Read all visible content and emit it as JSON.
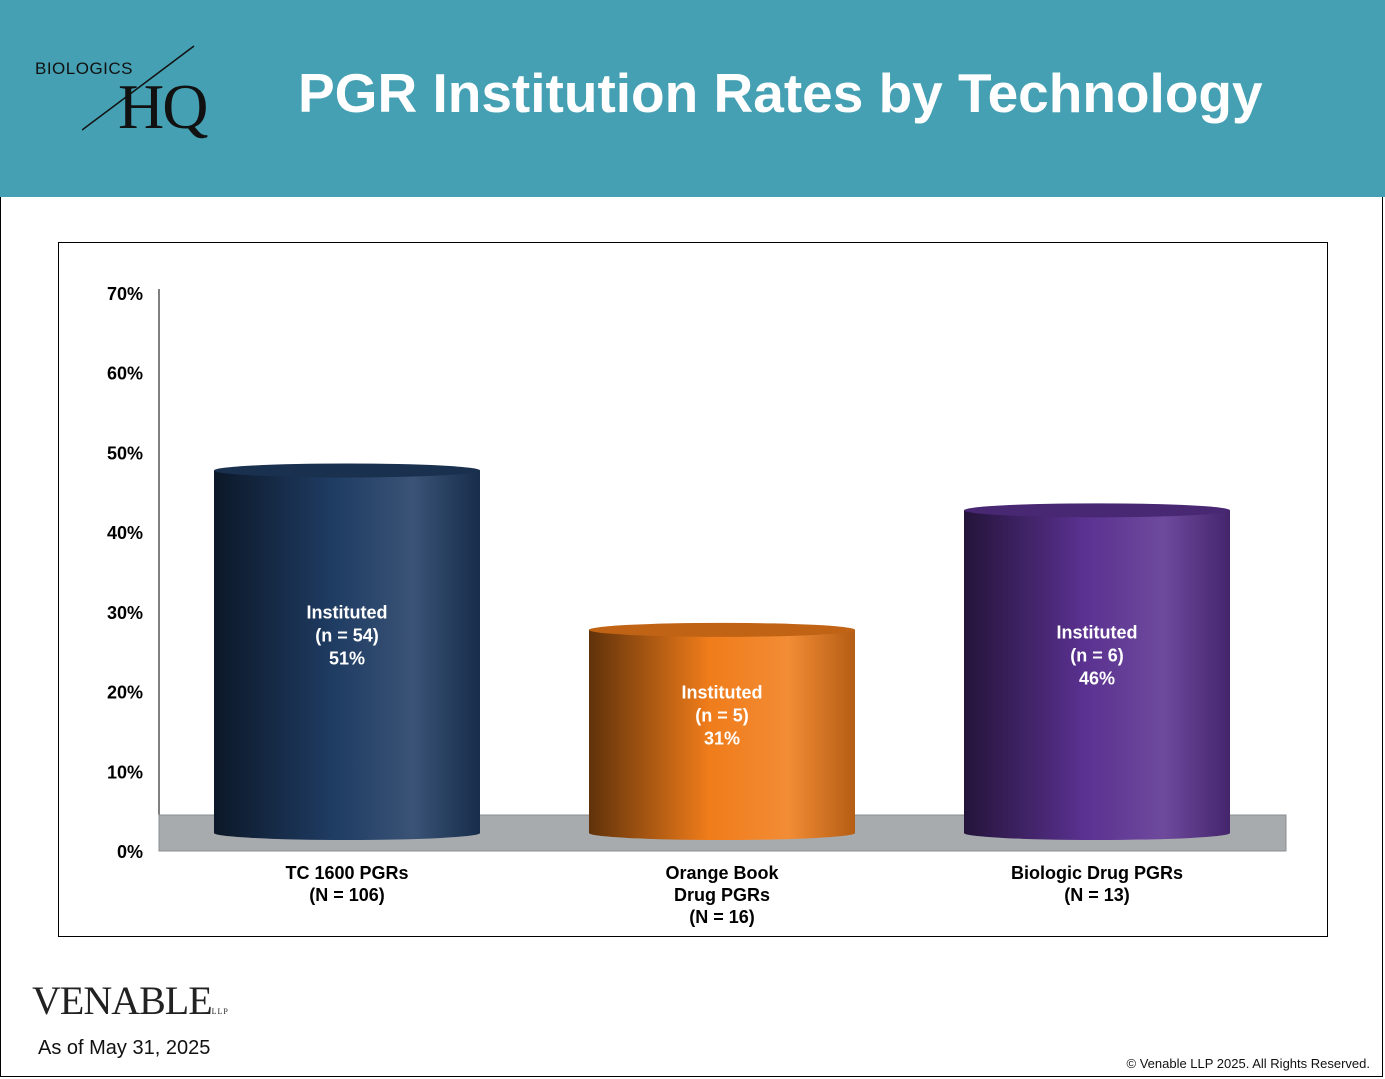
{
  "header": {
    "logo_top": "BIOLOGICS",
    "logo_main": "HQ",
    "title": "PGR Institution Rates by Technology",
    "bg_color": "#45a0b3"
  },
  "footer": {
    "firm_name": "VENABLE",
    "firm_suffix": "LLP",
    "as_of": "As of May 31, 2025",
    "copyright": "© Venable LLP 2025. All Rights Reserved."
  },
  "chart_data": {
    "type": "bar",
    "style": "3d-cylinder",
    "ylim": [
      0,
      70
    ],
    "yticks": [
      "0%",
      "10%",
      "20%",
      "30%",
      "40%",
      "50%",
      "60%",
      "70%"
    ],
    "categories": [
      [
        "TC 1600 PGRs",
        "(N = 106)"
      ],
      [
        "Orange Book",
        "Drug PGRs",
        "(N = 16)"
      ],
      [
        "Biologic Drug PGRs",
        "(N = 13)"
      ]
    ],
    "values": [
      51,
      31,
      46
    ],
    "bar_labels": [
      [
        "Instituted",
        "(n = 54)",
        "51%"
      ],
      [
        "Instituted",
        "(n = 5)",
        "31%"
      ],
      [
        "Instituted",
        "(n = 6)",
        "46%"
      ]
    ],
    "colors": [
      "#1f3c63",
      "#f07c1a",
      "#5a3190"
    ],
    "floor_color": "#a8abae",
    "grid": false,
    "legend": "none"
  }
}
